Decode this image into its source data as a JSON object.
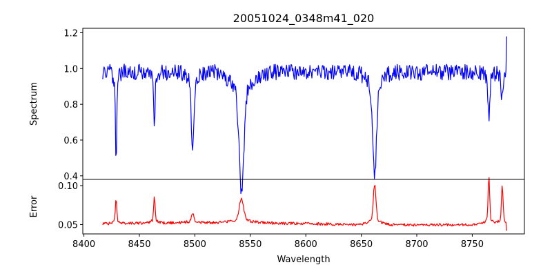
{
  "chart_data": [
    {
      "panel": "top",
      "type": "line",
      "title": "20051024_0348m41_020",
      "xlabel": "",
      "ylabel": "Spectrum",
      "xlim": [
        8399,
        8797
      ],
      "ylim": [
        0.38,
        1.225
      ],
      "yticks": [
        0.4,
        0.6,
        0.8,
        1.0,
        1.2
      ],
      "ytick_labels": [
        "0.4",
        "0.6",
        "0.8",
        "1.0",
        "1.2"
      ],
      "grid": false,
      "series": [
        {
          "color": "#0000ff",
          "x_start": 8417,
          "x_end": 8781,
          "baseline": 0.98,
          "noise": 0.045,
          "absorption_lines": [
            {
              "center": 8429.0,
              "depth": 0.42,
              "width": 0.5
            },
            {
              "center": 8463.5,
              "depth": 0.24,
              "width": 0.6
            },
            {
              "center": 8498.0,
              "depth": 0.34,
              "width": 1.2
            },
            {
              "center": 8542.0,
              "depth": 0.56,
              "width": 2.2
            },
            {
              "center": 8662.0,
              "depth": 0.5,
              "width": 1.6
            },
            {
              "center": 8765.0,
              "depth": 0.23,
              "width": 0.7
            },
            {
              "center": 8777.0,
              "depth": 0.12,
              "width": 1.0
            }
          ],
          "end_value": 1.18
        }
      ]
    },
    {
      "panel": "bottom",
      "type": "line",
      "title": "",
      "xlabel": "Wavelength",
      "ylabel": "Error",
      "xlim": [
        8399,
        8797
      ],
      "ylim": [
        0.038,
        0.108
      ],
      "xticks": [
        8400,
        8450,
        8500,
        8550,
        8600,
        8650,
        8700,
        8750
      ],
      "xtick_labels": [
        "8400",
        "8450",
        "8500",
        "8550",
        "8600",
        "8650",
        "8700",
        "8750"
      ],
      "yticks": [
        0.05,
        0.1
      ],
      "ytick_labels": [
        "0.05",
        "0.10"
      ],
      "grid": false,
      "series": [
        {
          "color": "#ff0000",
          "x_start": 8417,
          "x_end": 8781,
          "baseline": 0.051,
          "noise": 0.0018,
          "peaks": [
            {
              "center": 8429.0,
              "height": 0.03,
              "width": 0.6
            },
            {
              "center": 8463.5,
              "height": 0.032,
              "width": 0.6
            },
            {
              "center": 8498.0,
              "height": 0.01,
              "width": 1.2
            },
            {
              "center": 8542.0,
              "height": 0.027,
              "width": 2.0
            },
            {
              "center": 8662.0,
              "height": 0.046,
              "width": 1.2
            },
            {
              "center": 8765.0,
              "height": 0.054,
              "width": 0.7
            },
            {
              "center": 8777.0,
              "height": 0.045,
              "width": 0.7
            }
          ]
        }
      ]
    }
  ]
}
